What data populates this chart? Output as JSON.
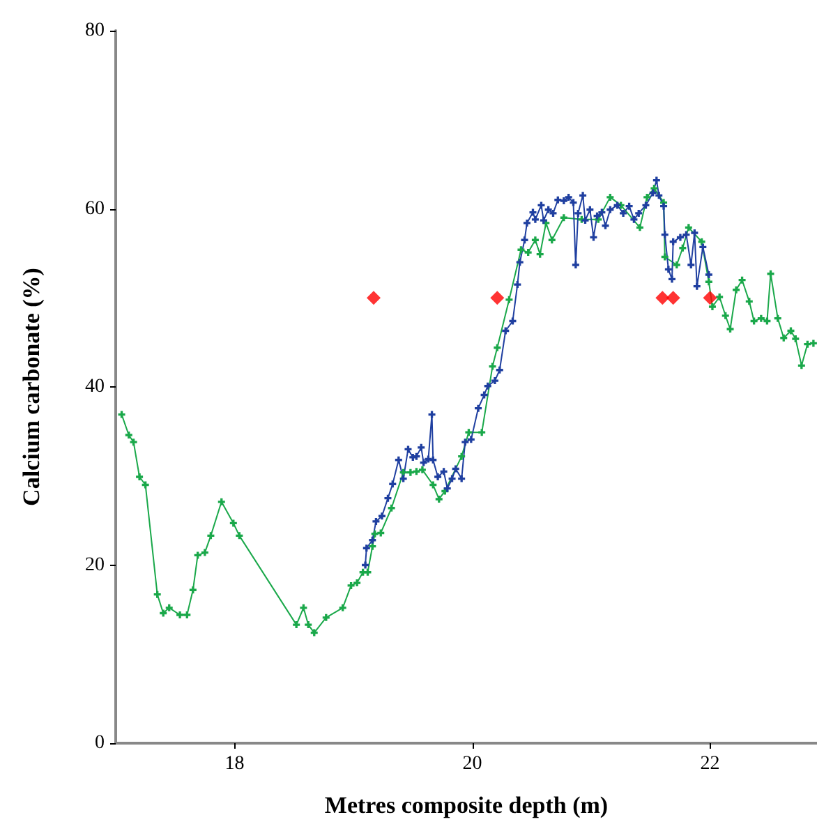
{
  "chart_data": {
    "type": "line",
    "xlabel": "Metres composite depth (m)",
    "ylabel": "Calcium carbonate (%)",
    "xlim": [
      17,
      22.9
    ],
    "xticks": [
      18,
      20,
      22
    ],
    "ylim": [
      0,
      80
    ],
    "yticks": [
      0,
      20,
      40,
      60,
      80
    ],
    "grid": false,
    "marker": "cross",
    "line_style": "solid",
    "series": [
      {
        "color": "#1aa84a",
        "x": [
          17.05,
          17.11,
          17.15,
          17.2,
          17.25,
          17.35,
          17.4,
          17.45,
          17.54,
          17.6,
          17.65,
          17.69,
          17.75,
          17.8,
          17.89,
          17.99,
          18.04,
          18.52,
          18.58,
          18.62,
          18.67,
          18.77,
          18.91,
          18.98,
          19.03,
          19.08,
          19.12,
          19.16,
          19.18,
          19.23,
          19.32,
          19.42,
          19.48,
          19.53,
          19.58,
          19.67,
          19.72,
          19.77,
          19.91,
          19.97,
          20.08,
          20.17,
          20.21,
          20.31,
          20.41,
          20.47,
          20.53,
          20.57,
          20.62,
          20.67,
          20.77,
          20.92,
          21.06,
          21.16,
          21.25,
          21.41,
          21.47,
          21.53,
          21.61,
          21.62,
          21.72,
          21.77,
          21.82,
          21.93,
          21.99,
          22.02,
          22.08,
          22.13,
          22.17,
          22.22,
          22.27,
          22.33,
          22.37,
          22.43,
          22.48,
          22.51,
          22.57,
          22.62,
          22.68,
          22.72,
          22.77,
          22.82,
          22.87
        ],
        "values": [
          36.9,
          34.6,
          33.8,
          29.9,
          29,
          16.7,
          14.6,
          15.2,
          14.4,
          14.4,
          17.2,
          21.1,
          21.4,
          23.3,
          27.1,
          24.7,
          23.3,
          13.3,
          15.2,
          13.3,
          12.4,
          14.1,
          15.2,
          17.7,
          18,
          19.2,
          19.2,
          22.1,
          23.5,
          23.6,
          26.4,
          30.4,
          30.4,
          30.5,
          30.7,
          29,
          27.4,
          28.3,
          32.2,
          34.9,
          34.9,
          42.3,
          44.4,
          49.8,
          55.4,
          55.1,
          56.5,
          54.9,
          58.4,
          56.5,
          59,
          58.8,
          58.8,
          61.3,
          60.4,
          57.9,
          61.3,
          62.3,
          60.7,
          54.6,
          53.7,
          55.6,
          57.9,
          56.3,
          51.8,
          49,
          50.1,
          48,
          46.5,
          50.9,
          52,
          49.6,
          47.4,
          47.7,
          47.4,
          52.7,
          47.7,
          45.5,
          46.3,
          45.4,
          42.4,
          44.8,
          44.9
        ]
      },
      {
        "color": "#1f3fa0",
        "x": [
          19.1,
          19.11,
          19.16,
          19.19,
          19.24,
          19.29,
          19.33,
          19.38,
          19.42,
          19.46,
          19.5,
          19.53,
          19.57,
          19.59,
          19.63,
          19.66,
          19.67,
          19.71,
          19.76,
          19.79,
          19.83,
          19.86,
          19.91,
          19.94,
          19.99,
          20.05,
          20.1,
          20.13,
          20.19,
          20.23,
          20.28,
          20.34,
          20.38,
          20.4,
          20.44,
          20.46,
          20.51,
          20.53,
          20.58,
          20.6,
          20.64,
          20.68,
          20.72,
          20.77,
          20.81,
          20.85,
          20.87,
          20.89,
          20.93,
          20.95,
          20.99,
          21.02,
          21.05,
          21.09,
          21.12,
          21.16,
          21.22,
          21.27,
          21.32,
          21.36,
          21.4,
          21.46,
          21.52,
          21.55,
          21.57,
          21.61,
          21.62,
          21.65,
          21.68,
          21.69,
          21.75,
          21.8,
          21.84,
          21.87,
          21.89,
          21.94,
          21.99
        ],
        "values": [
          20,
          21.9,
          22.8,
          24.9,
          25.5,
          27.5,
          29.1,
          31.8,
          29.7,
          33,
          32.1,
          32.2,
          33.2,
          31.5,
          31.9,
          36.9,
          31.8,
          29.9,
          30.5,
          28.6,
          29.7,
          30.8,
          29.7,
          33.8,
          34.1,
          37.6,
          39.1,
          40.1,
          40.7,
          41.9,
          46.3,
          47.4,
          51.5,
          54,
          56.5,
          58.4,
          59.6,
          58.8,
          60.4,
          58.7,
          59.9,
          59.5,
          61,
          60.9,
          61.3,
          60.7,
          53.7,
          59.5,
          61.5,
          58.7,
          59.9,
          56.8,
          59.2,
          59.6,
          58.1,
          59.9,
          60.4,
          59.5,
          60.3,
          58.8,
          59.5,
          60.4,
          61.8,
          63.2,
          61.5,
          60.3,
          57.1,
          53.2,
          52.1,
          56.3,
          56.8,
          57.1,
          53.7,
          57.3,
          51.3,
          55.7,
          52.6
        ]
      },
      {
        "type": "scatter",
        "color": "#ff0000",
        "marker": "diamond",
        "x": [
          19.17,
          20.21,
          21.6,
          21.69,
          22
        ],
        "values": [
          50,
          50,
          50,
          50,
          50
        ]
      }
    ]
  }
}
